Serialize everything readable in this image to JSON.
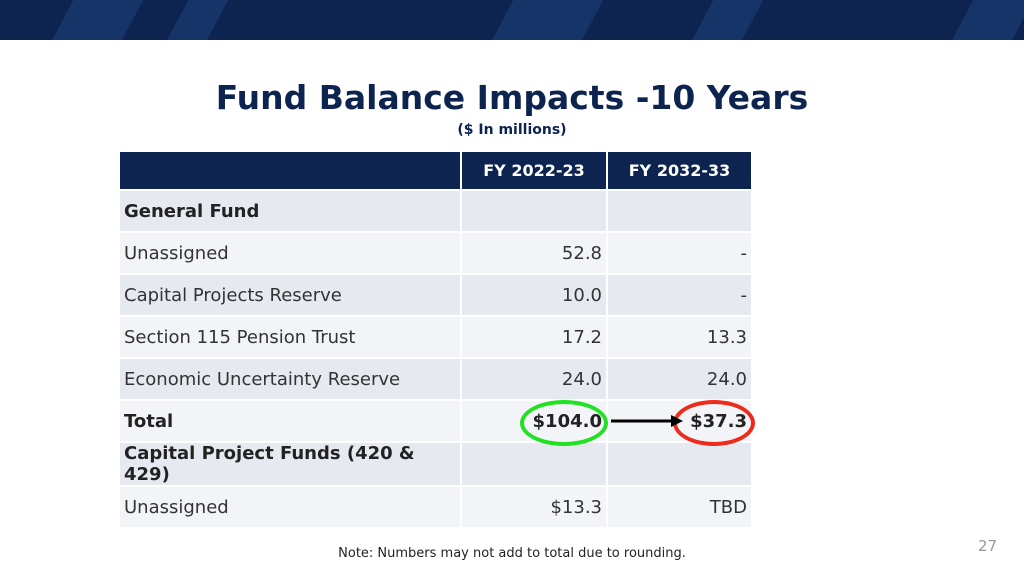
{
  "slide": {
    "title": "Fund Balance Impacts -10 Years",
    "subtitle": "($ In millions)",
    "note": "Note: Numbers may not add to total due to rounding.",
    "page_number": "27"
  },
  "table": {
    "headers": [
      "",
      "FY 2022-23",
      "FY 2032-33"
    ],
    "rows": [
      {
        "label": "General Fund",
        "fy2022": "",
        "fy2032": "",
        "bold": true
      },
      {
        "label": "Unassigned",
        "fy2022": "52.8",
        "fy2032": "-"
      },
      {
        "label": "Capital Projects Reserve",
        "fy2022": "10.0",
        "fy2032": "-"
      },
      {
        "label": "Section 115 Pension Trust",
        "fy2022": "17.2",
        "fy2032": "13.3"
      },
      {
        "label": "Economic Uncertainty Reserve",
        "fy2022": "24.0",
        "fy2032": "24.0"
      },
      {
        "label": "Total",
        "fy2022": "$104.0",
        "fy2032": "$37.3",
        "bold": true
      },
      {
        "label": "Capital Project Funds (420 & 429)",
        "fy2022": "",
        "fy2032": "",
        "bold": true
      },
      {
        "label": "Unassigned",
        "fy2022": "$13.3",
        "fy2032": "TBD"
      }
    ]
  },
  "colors": {
    "navy": "#0d2350",
    "highlight_fy2022": "#22e022",
    "highlight_fy2032": "#ee2a1a"
  }
}
